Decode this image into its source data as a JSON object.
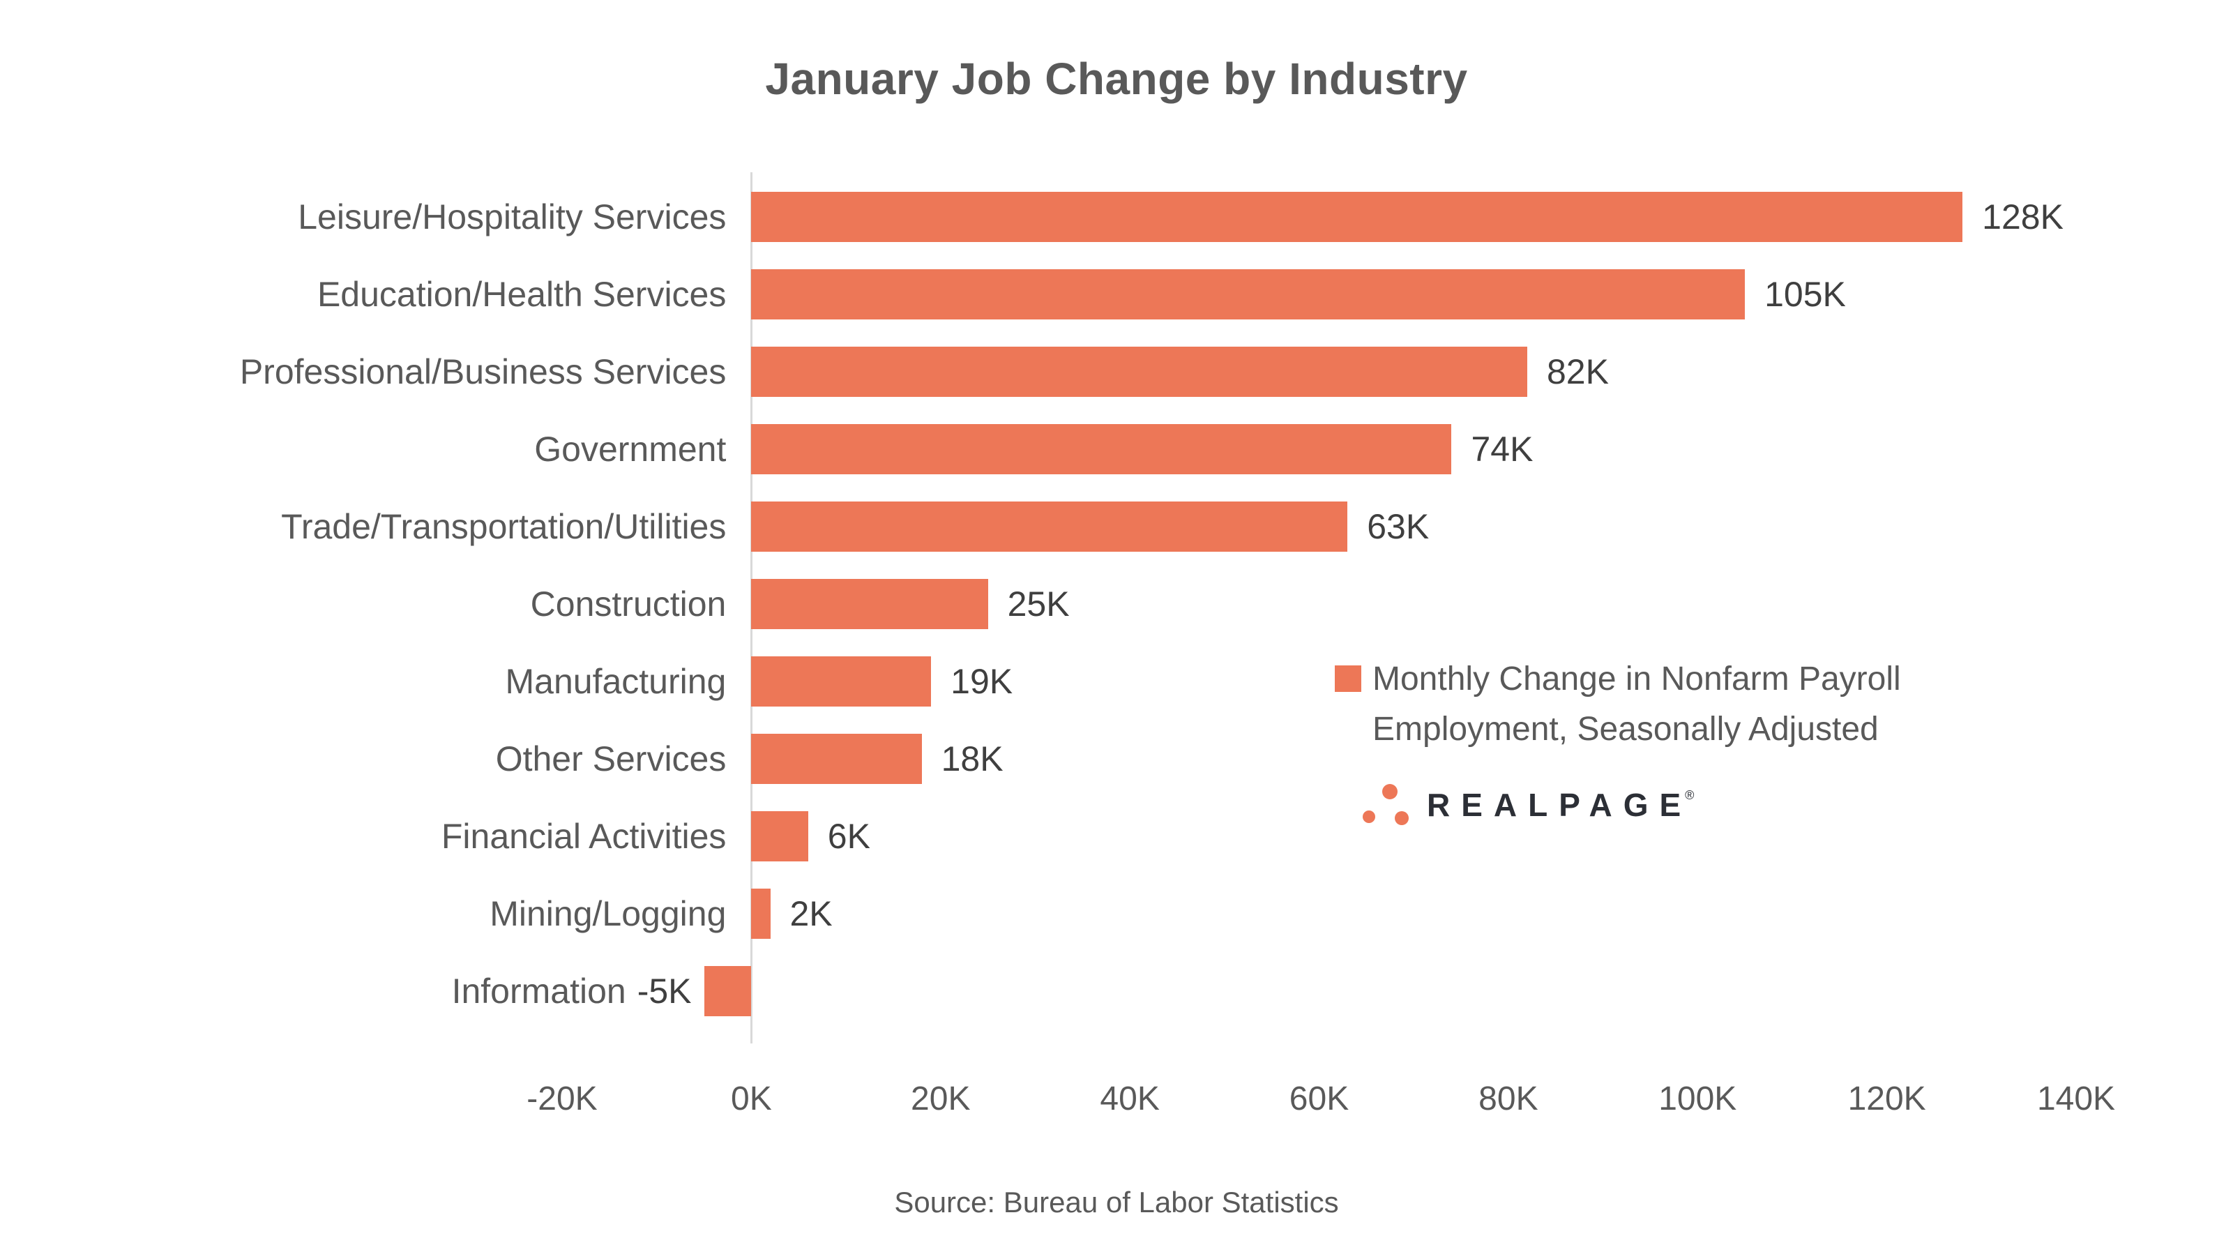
{
  "chart_data": {
    "type": "bar",
    "orientation": "horizontal",
    "title": "January Job Change by Industry",
    "categories": [
      "Leisure/Hospitality Services",
      "Education/Health Services",
      "Professional/Business Services",
      "Government",
      "Trade/Transportation/Utilities",
      "Construction",
      "Manufacturing",
      "Other Services",
      "Financial Activities",
      "Mining/Logging",
      "Information"
    ],
    "values_thousands": [
      128,
      105,
      82,
      74,
      63,
      25,
      19,
      18,
      6,
      2,
      -5
    ],
    "value_labels": [
      "128K",
      "105K",
      "82K",
      "74K",
      "63K",
      "25K",
      "19K",
      "18K",
      "6K",
      "2K",
      "-5K"
    ],
    "xlabel": "",
    "ylabel": "",
    "xlim": [
      -20,
      140
    ],
    "tick_values": [
      -20,
      0,
      20,
      40,
      60,
      80,
      100,
      120,
      140
    ],
    "tick_labels": [
      "-20K",
      "0K",
      "20K",
      "40K",
      "60K",
      "80K",
      "100K",
      "120K",
      "140K"
    ],
    "grid": false,
    "legend_position": "middle-right",
    "legend_label": "Monthly Change in Nonfarm Payroll Employment, Seasonally Adjusted",
    "bar_color": "#ed7757"
  },
  "logo": {
    "brand": "REALPAGE",
    "registered": "®",
    "dot_color": "#ed7757",
    "text_color": "#2c2f36"
  },
  "source": "Source: Bureau of Labor Statistics",
  "colors": {
    "bar": "#ed7757",
    "title": "#595959",
    "category_label": "#595959",
    "value_label": "#3f3f3f",
    "tick_label": "#595959",
    "axis_line": "#d9d9d9",
    "background": "#ffffff"
  }
}
